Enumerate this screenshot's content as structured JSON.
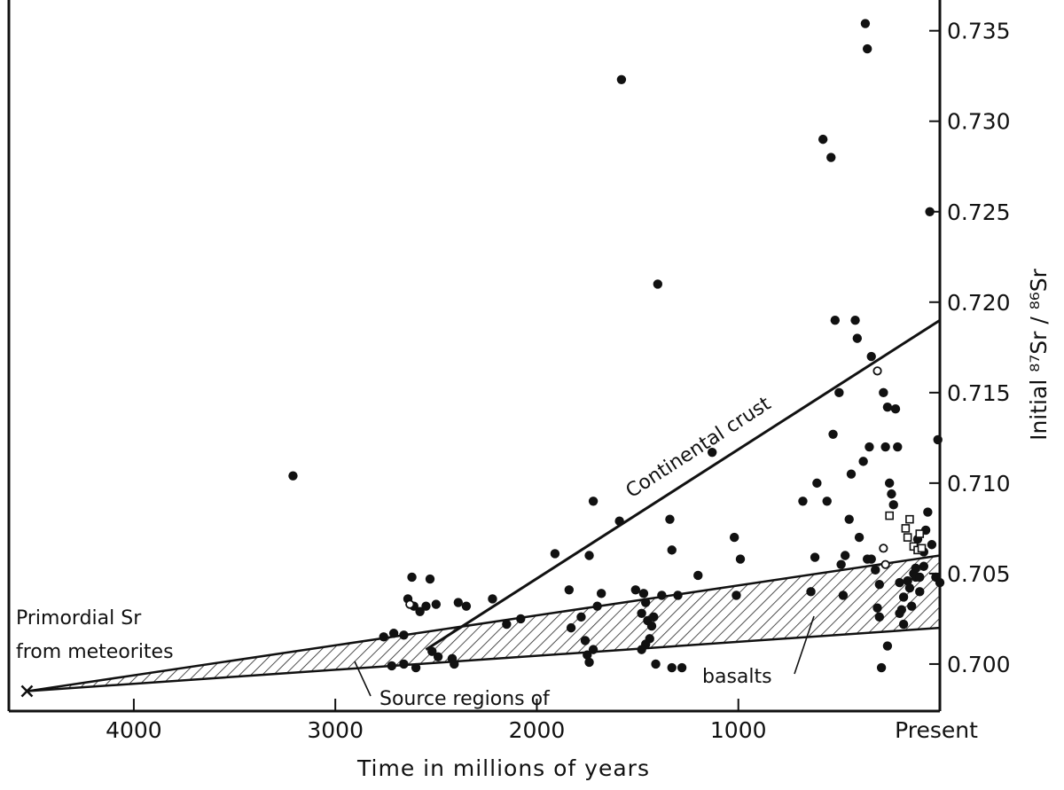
{
  "chart_data": {
    "type": "scatter",
    "title": "",
    "xlabel": "Time in millions of years",
    "ylabel": "Initial ⁸⁷Sr / ⁸⁶Sr",
    "xlim": [
      4620,
      0
    ],
    "ylim": [
      0.6974,
      0.7367
    ],
    "x_ticks": [
      {
        "value": 4000,
        "label": "4000"
      },
      {
        "value": 3000,
        "label": "3000"
      },
      {
        "value": 2000,
        "label": "2000"
      },
      {
        "value": 1000,
        "label": "1000"
      },
      {
        "value": 0,
        "label": "Present"
      }
    ],
    "y_ticks": [
      {
        "value": 0.7,
        "label": "0.700"
      },
      {
        "value": 0.705,
        "label": "0.705"
      },
      {
        "value": 0.71,
        "label": "0.710"
      },
      {
        "value": 0.715,
        "label": "0.715"
      },
      {
        "value": 0.72,
        "label": "0.720"
      },
      {
        "value": 0.725,
        "label": "0.725"
      },
      {
        "value": 0.73,
        "label": "0.730"
      },
      {
        "value": 0.735,
        "label": "0.735"
      }
    ],
    "grid": false,
    "annotations": {
      "primordial_line1": "Primordial Sr",
      "primordial_line2": "from meteorites",
      "continental_crust": "Continental crust",
      "source_regions": "Source regions of",
      "basalts": "basalts"
    },
    "primordial_point": {
      "x": 4530,
      "y": 0.6985
    },
    "continental_crust_line": {
      "x": [
        2550,
        0
      ],
      "y": [
        0.7008,
        0.719
      ]
    },
    "basalt_source_band": {
      "upper": {
        "x": [
          4530,
          0
        ],
        "y": [
          0.6985,
          0.706
        ]
      },
      "lower": {
        "x": [
          4530,
          0
        ],
        "y": [
          0.6985,
          0.702
        ]
      }
    },
    "filled_points": [
      [
        3210,
        0.7104
      ],
      [
        2710,
        0.7017
      ],
      [
        2760,
        0.7015
      ],
      [
        2620,
        0.7048
      ],
      [
        2640,
        0.7036
      ],
      [
        2610,
        0.7032
      ],
      [
        2580,
        0.7029
      ],
      [
        2660,
        0.7016
      ],
      [
        2720,
        0.6999
      ],
      [
        2660,
        0.7
      ],
      [
        2600,
        0.6998
      ],
      [
        2530,
        0.7047
      ],
      [
        2550,
        0.7032
      ],
      [
        2500,
        0.7033
      ],
      [
        2520,
        0.7007
      ],
      [
        2490,
        0.7004
      ],
      [
        2420,
        0.7003
      ],
      [
        2410,
        0.7
      ],
      [
        2390,
        0.7034
      ],
      [
        2350,
        0.7032
      ],
      [
        2220,
        0.7036
      ],
      [
        2150,
        0.7022
      ],
      [
        2080,
        0.7025
      ],
      [
        1910,
        0.7061
      ],
      [
        1840,
        0.7041
      ],
      [
        1830,
        0.702
      ],
      [
        1780,
        0.7026
      ],
      [
        1740,
        0.706
      ],
      [
        1760,
        0.7013
      ],
      [
        1720,
        0.7008
      ],
      [
        1750,
        0.7005
      ],
      [
        1740,
        0.7001
      ],
      [
        1720,
        0.709
      ],
      [
        1700,
        0.7032
      ],
      [
        1680,
        0.7039
      ],
      [
        1580,
        0.7323
      ],
      [
        1590,
        0.7079
      ],
      [
        1510,
        0.7041
      ],
      [
        1470,
        0.7039
      ],
      [
        1460,
        0.7034
      ],
      [
        1480,
        0.7028
      ],
      [
        1450,
        0.7024
      ],
      [
        1430,
        0.7021
      ],
      [
        1420,
        0.7026
      ],
      [
        1440,
        0.7014
      ],
      [
        1460,
        0.7011
      ],
      [
        1480,
        0.7008
      ],
      [
        1410,
        0.7
      ],
      [
        1380,
        0.7038
      ],
      [
        1340,
        0.708
      ],
      [
        1330,
        0.7063
      ],
      [
        1300,
        0.7038
      ],
      [
        1330,
        0.6998
      ],
      [
        1280,
        0.6998
      ],
      [
        1400,
        0.721
      ],
      [
        1130,
        0.7117
      ],
      [
        1020,
        0.707
      ],
      [
        1010,
        0.7038
      ],
      [
        990,
        0.7058
      ],
      [
        1200,
        0.7049
      ],
      [
        680,
        0.709
      ],
      [
        610,
        0.71
      ],
      [
        620,
        0.7059
      ],
      [
        640,
        0.704
      ],
      [
        560,
        0.709
      ],
      [
        530,
        0.7127
      ],
      [
        520,
        0.719
      ],
      [
        500,
        0.715
      ],
      [
        490,
        0.7055
      ],
      [
        480,
        0.7038
      ],
      [
        470,
        0.706
      ],
      [
        450,
        0.708
      ],
      [
        440,
        0.7105
      ],
      [
        420,
        0.719
      ],
      [
        410,
        0.718
      ],
      [
        400,
        0.707
      ],
      [
        380,
        0.7112
      ],
      [
        360,
        0.7058
      ],
      [
        350,
        0.712
      ],
      [
        340,
        0.717
      ],
      [
        320,
        0.7052
      ],
      [
        300,
        0.7044
      ],
      [
        280,
        0.715
      ],
      [
        270,
        0.712
      ],
      [
        260,
        0.7142
      ],
      [
        250,
        0.71
      ],
      [
        240,
        0.7094
      ],
      [
        230,
        0.7088
      ],
      [
        220,
        0.7141
      ],
      [
        210,
        0.712
      ],
      [
        200,
        0.7045
      ],
      [
        190,
        0.703
      ],
      [
        180,
        0.7037
      ],
      [
        160,
        0.7046
      ],
      [
        150,
        0.7042
      ],
      [
        140,
        0.7032
      ],
      [
        130,
        0.705
      ],
      [
        120,
        0.7048
      ],
      [
        110,
        0.7069
      ],
      [
        100,
        0.704
      ],
      [
        80,
        0.7054
      ],
      [
        60,
        0.7084
      ],
      [
        40,
        0.7066
      ],
      [
        20,
        0.7048
      ],
      [
        10,
        0.7124
      ],
      [
        0,
        0.7045
      ],
      [
        580,
        0.729
      ],
      [
        540,
        0.728
      ],
      [
        370,
        0.7354
      ],
      [
        360,
        0.734
      ],
      [
        340,
        0.7058
      ],
      [
        310,
        0.7031
      ],
      [
        300,
        0.7026
      ],
      [
        290,
        0.6998
      ],
      [
        260,
        0.701
      ],
      [
        200,
        0.7028
      ],
      [
        180,
        0.7022
      ],
      [
        120,
        0.7053
      ],
      [
        100,
        0.7048
      ],
      [
        50,
        0.725
      ],
      [
        80,
        0.7062
      ],
      [
        70,
        0.7074
      ]
    ],
    "open_square_points": [
      [
        250,
        0.7082
      ],
      [
        170,
        0.7075
      ],
      [
        160,
        0.707
      ],
      [
        130,
        0.7065
      ],
      [
        110,
        0.7063
      ],
      [
        100,
        0.7072
      ],
      [
        90,
        0.7064
      ],
      [
        150,
        0.708
      ]
    ],
    "open_circle_points": [
      [
        2630,
        0.7033
      ],
      [
        310,
        0.7162
      ],
      [
        280,
        0.7064
      ],
      [
        270,
        0.7055
      ]
    ]
  }
}
